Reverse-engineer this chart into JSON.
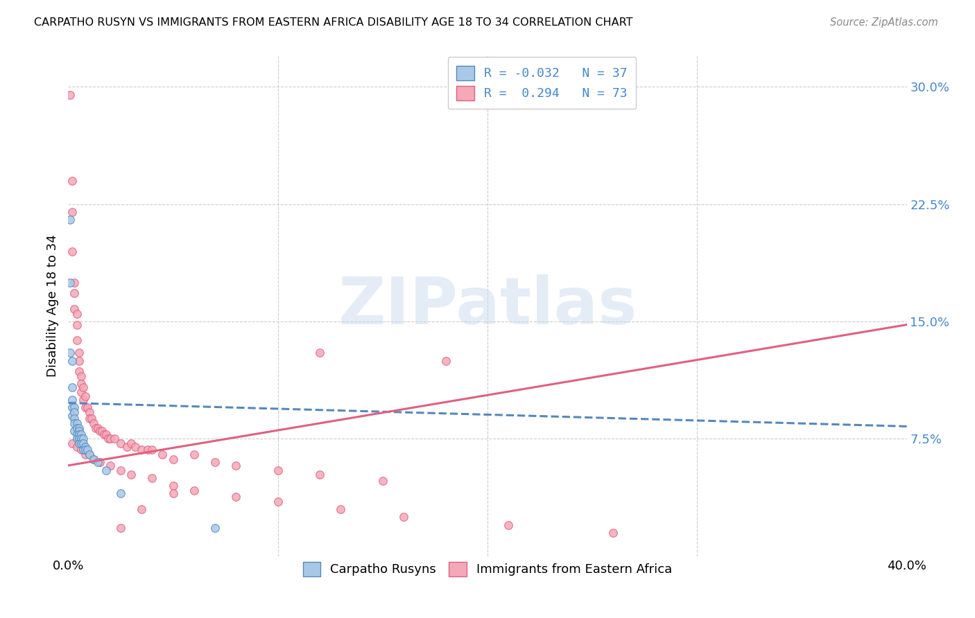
{
  "title": "CARPATHO RUSYN VS IMMIGRANTS FROM EASTERN AFRICA DISABILITY AGE 18 TO 34 CORRELATION CHART",
  "source": "Source: ZipAtlas.com",
  "ylabel": "Disability Age 18 to 34",
  "ytick_labels": [
    "7.5%",
    "15.0%",
    "22.5%",
    "30.0%"
  ],
  "ytick_values": [
    0.075,
    0.15,
    0.225,
    0.3
  ],
  "xlim": [
    0.0,
    0.4
  ],
  "ylim": [
    0.0,
    0.32
  ],
  "color_blue": "#a8c8e8",
  "color_pink": "#f4a8b8",
  "color_blue_edge": "#5588bb",
  "color_pink_edge": "#e06080",
  "color_blue_line": "#5588bb",
  "color_pink_line": "#e06080",
  "color_blue_text": "#4488cc",
  "watermark": "ZIPatlas",
  "blue_line_x": [
    0.0,
    0.4
  ],
  "blue_line_y": [
    0.098,
    0.083
  ],
  "pink_line_x": [
    0.0,
    0.4
  ],
  "pink_line_y": [
    0.058,
    0.148
  ],
  "blue_points_x": [
    0.001,
    0.001,
    0.001,
    0.002,
    0.002,
    0.002,
    0.002,
    0.002,
    0.003,
    0.003,
    0.003,
    0.003,
    0.003,
    0.004,
    0.004,
    0.004,
    0.004,
    0.005,
    0.005,
    0.005,
    0.005,
    0.005,
    0.006,
    0.006,
    0.006,
    0.007,
    0.007,
    0.007,
    0.008,
    0.008,
    0.009,
    0.01,
    0.012,
    0.014,
    0.018,
    0.025,
    0.07
  ],
  "blue_points_y": [
    0.215,
    0.175,
    0.13,
    0.125,
    0.108,
    0.1,
    0.095,
    0.09,
    0.095,
    0.092,
    0.088,
    0.085,
    0.08,
    0.085,
    0.082,
    0.078,
    0.075,
    0.082,
    0.08,
    0.078,
    0.075,
    0.072,
    0.078,
    0.075,
    0.072,
    0.075,
    0.072,
    0.068,
    0.07,
    0.068,
    0.068,
    0.065,
    0.062,
    0.06,
    0.055,
    0.04,
    0.018
  ],
  "pink_points_x": [
    0.001,
    0.002,
    0.002,
    0.002,
    0.003,
    0.003,
    0.003,
    0.004,
    0.004,
    0.004,
    0.005,
    0.005,
    0.005,
    0.006,
    0.006,
    0.006,
    0.007,
    0.007,
    0.008,
    0.008,
    0.009,
    0.01,
    0.01,
    0.011,
    0.012,
    0.013,
    0.014,
    0.015,
    0.016,
    0.017,
    0.018,
    0.019,
    0.02,
    0.022,
    0.025,
    0.028,
    0.03,
    0.032,
    0.035,
    0.038,
    0.04,
    0.045,
    0.05,
    0.06,
    0.07,
    0.08,
    0.1,
    0.12,
    0.15,
    0.18,
    0.002,
    0.004,
    0.006,
    0.008,
    0.01,
    0.012,
    0.015,
    0.02,
    0.025,
    0.03,
    0.04,
    0.05,
    0.06,
    0.08,
    0.1,
    0.13,
    0.16,
    0.21,
    0.26,
    0.12,
    0.05,
    0.035,
    0.025
  ],
  "pink_points_y": [
    0.295,
    0.24,
    0.22,
    0.195,
    0.175,
    0.168,
    0.158,
    0.155,
    0.148,
    0.138,
    0.13,
    0.125,
    0.118,
    0.115,
    0.11,
    0.105,
    0.108,
    0.1,
    0.102,
    0.095,
    0.095,
    0.092,
    0.088,
    0.088,
    0.085,
    0.082,
    0.082,
    0.08,
    0.08,
    0.078,
    0.078,
    0.075,
    0.075,
    0.075,
    0.072,
    0.07,
    0.072,
    0.07,
    0.068,
    0.068,
    0.068,
    0.065,
    0.062,
    0.065,
    0.06,
    0.058,
    0.055,
    0.052,
    0.048,
    0.125,
    0.072,
    0.07,
    0.068,
    0.065,
    0.065,
    0.062,
    0.06,
    0.058,
    0.055,
    0.052,
    0.05,
    0.045,
    0.042,
    0.038,
    0.035,
    0.03,
    0.025,
    0.02,
    0.015,
    0.13,
    0.04,
    0.03,
    0.018
  ]
}
